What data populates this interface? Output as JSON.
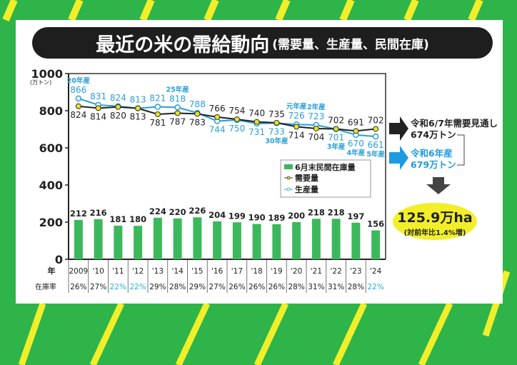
{
  "header": {
    "title": "最近の米の需給動向",
    "subtitle": "(需要量、生産量、民間在庫)"
  },
  "colors": {
    "bar": "#3cb85c",
    "demand_line": "#222222",
    "demand_marker": "#e8e22a",
    "production": "#2a9fd6",
    "rate_highlight": "#2ab0d6",
    "background": "#2fb44a",
    "stripe": "#f0ef2a"
  },
  "chart_data": {
    "type": "bar+line",
    "categories": [
      "2009",
      "'10",
      "'11",
      "'12",
      "'13",
      "'14",
      "'15",
      "'16",
      "'17",
      "'18",
      "'19",
      "'20",
      "'21",
      "'22",
      "'23",
      "'24"
    ],
    "series": [
      {
        "name": "6月末民間在庫量",
        "type": "bar",
        "values": [
          212,
          216,
          181,
          180,
          224,
          220,
          226,
          204,
          199,
          190,
          189,
          200,
          218,
          218,
          197,
          156
        ]
      },
      {
        "name": "需要量",
        "type": "line",
        "values": [
          824,
          814,
          820,
          813,
          781,
          787,
          783,
          766,
          754,
          740,
          735,
          714,
          704,
          702,
          691,
          702
        ]
      },
      {
        "name": "生産量",
        "type": "line",
        "values": [
          866,
          831,
          824,
          813,
          821,
          818,
          788,
          744,
          750,
          731,
          733,
          726,
          723,
          701,
          670,
          661
        ]
      }
    ],
    "production_annotations": [
      {
        "index": 0,
        "text": "20年産",
        "position": "above"
      },
      {
        "index": 5,
        "text": "25年産",
        "position": "above"
      },
      {
        "index": 10,
        "text": "30年産",
        "position": "below"
      },
      {
        "index": 11,
        "text": "元年産",
        "position": "above"
      },
      {
        "index": 12,
        "text": "2年産",
        "position": "above"
      },
      {
        "index": 13,
        "text": "3年産",
        "position": "below"
      },
      {
        "index": 14,
        "text": "4年産",
        "position": "below"
      },
      {
        "index": 15,
        "text": "5年産",
        "position": "below"
      }
    ],
    "ylim": [
      0,
      1000
    ],
    "yticks": [
      0,
      200,
      400,
      600,
      800,
      1000
    ],
    "yunit": "(万トン)",
    "year_row_label": "年",
    "rate_row_label": "在庫率",
    "stock_rates": [
      "26%",
      "27%",
      "22%",
      "22%",
      "29%",
      "28%",
      "29%",
      "27%",
      "26%",
      "26%",
      "26%",
      "28%",
      "31%",
      "31%",
      "28%",
      "22%"
    ],
    "highlighted_rates": [
      2,
      3,
      15
    ],
    "legend_placement": "center-right",
    "grid": false
  },
  "side": {
    "demand_forecast_line1": "令和6/7年需要見通し",
    "demand_forecast_line2": "674万トン",
    "production_line1": "令和6年産",
    "production_line2": "679万トン",
    "area_value": "125.9万ha",
    "area_change": "(対前年比1.4%増)"
  }
}
